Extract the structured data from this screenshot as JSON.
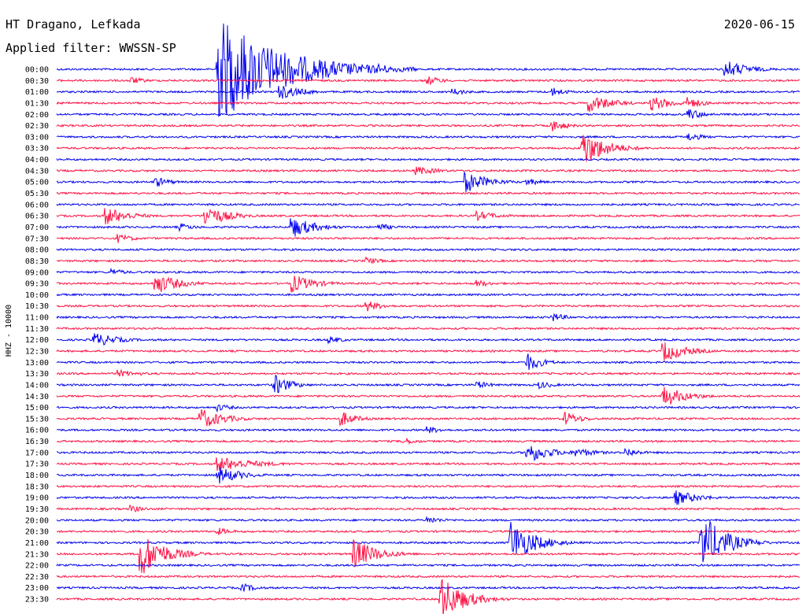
{
  "header": {
    "station": "HT Dragano, Lefkada",
    "filter": "Applied filter: WWSSN-SP",
    "date": "2020-06-15"
  },
  "chart_data": {
    "type": "helicorder",
    "title": "HT Dragano, Lefkada",
    "subtitle": "Applied filter: WWSSN-SP",
    "date": "2020-06-15",
    "ylabel": "HHZ - 10000",
    "colors": {
      "even_rows": "#0000ee",
      "odd_rows": "#ff1144"
    },
    "rows": [
      "00:00",
      "00:30",
      "01:00",
      "01:30",
      "02:00",
      "02:30",
      "03:00",
      "03:30",
      "04:00",
      "04:30",
      "05:00",
      "05:30",
      "06:00",
      "06:30",
      "07:00",
      "07:30",
      "08:00",
      "08:30",
      "09:00",
      "09:30",
      "10:00",
      "10:30",
      "11:00",
      "11:30",
      "12:00",
      "12:30",
      "13:00",
      "13:30",
      "14:00",
      "14:30",
      "15:00",
      "15:30",
      "16:00",
      "16:30",
      "17:00",
      "17:30",
      "18:00",
      "18:30",
      "19:00",
      "19:30",
      "20:00",
      "20:30",
      "21:00",
      "21:30",
      "22:00",
      "22:30",
      "23:00",
      "23:30"
    ],
    "events": [
      {
        "row": 0,
        "minute": 6.5,
        "amp": 70,
        "dur": 8,
        "dir": "down"
      },
      {
        "row": 0,
        "minute": 13,
        "amp": 8,
        "dur": 2
      },
      {
        "row": 0,
        "minute": 27,
        "amp": 12,
        "dur": 3
      },
      {
        "row": 1,
        "minute": 3,
        "amp": 5,
        "dur": 2
      },
      {
        "row": 1,
        "minute": 15,
        "amp": 6,
        "dur": 2
      },
      {
        "row": 2,
        "minute": 9,
        "amp": 10,
        "dur": 3
      },
      {
        "row": 2,
        "minute": 20,
        "amp": 6,
        "dur": 2
      },
      {
        "row": 2,
        "minute": 16,
        "amp": 5,
        "dur": 2
      },
      {
        "row": 3,
        "minute": 21.5,
        "amp": 12,
        "dur": 3
      },
      {
        "row": 3,
        "minute": 24,
        "amp": 10,
        "dur": 3
      },
      {
        "row": 3,
        "minute": 25.5,
        "amp": 8,
        "dur": 2
      },
      {
        "row": 4,
        "minute": 25.5,
        "amp": 8,
        "dur": 2
      },
      {
        "row": 5,
        "minute": 20,
        "amp": 8,
        "dur": 2
      },
      {
        "row": 6,
        "minute": 25.5,
        "amp": 6,
        "dur": 2
      },
      {
        "row": 7,
        "minute": 21.2,
        "amp": 25,
        "dur": 3
      },
      {
        "row": 9,
        "minute": 14.5,
        "amp": 6,
        "dur": 3
      },
      {
        "row": 10,
        "minute": 16.5,
        "amp": 14,
        "dur": 3
      },
      {
        "row": 10,
        "minute": 4,
        "amp": 7,
        "dur": 2
      },
      {
        "row": 10,
        "minute": 19,
        "amp": 5,
        "dur": 2
      },
      {
        "row": 13,
        "minute": 2,
        "amp": 12,
        "dur": 3
      },
      {
        "row": 13,
        "minute": 6,
        "amp": 14,
        "dur": 3
      },
      {
        "row": 13,
        "minute": 17,
        "amp": 6,
        "dur": 3
      },
      {
        "row": 14,
        "minute": 5,
        "amp": 5,
        "dur": 2
      },
      {
        "row": 14,
        "minute": 9.5,
        "amp": 14,
        "dur": 3
      },
      {
        "row": 14,
        "minute": 13,
        "amp": 5,
        "dur": 2
      },
      {
        "row": 15,
        "minute": 2.5,
        "amp": 6,
        "dur": 2
      },
      {
        "row": 17,
        "minute": 12.5,
        "amp": 5,
        "dur": 2
      },
      {
        "row": 18,
        "minute": 2.2,
        "amp": 5,
        "dur": 2
      },
      {
        "row": 19,
        "minute": 4.0,
        "amp": 14,
        "dur": 3
      },
      {
        "row": 19,
        "minute": 9.5,
        "amp": 12,
        "dur": 3
      },
      {
        "row": 19,
        "minute": 17,
        "amp": 5,
        "dur": 2
      },
      {
        "row": 21,
        "minute": 12.5,
        "amp": 8,
        "dur": 2
      },
      {
        "row": 22,
        "minute": 20,
        "amp": 6,
        "dur": 2
      },
      {
        "row": 24,
        "minute": 1.5,
        "amp": 10,
        "dur": 3
      },
      {
        "row": 24,
        "minute": 11,
        "amp": 5,
        "dur": 2
      },
      {
        "row": 25,
        "minute": 24.5,
        "amp": 14,
        "dur": 3
      },
      {
        "row": 26,
        "minute": 19,
        "amp": 12,
        "dur": 2
      },
      {
        "row": 27,
        "minute": 2.5,
        "amp": 5,
        "dur": 3
      },
      {
        "row": 28,
        "minute": 8.8,
        "amp": 14,
        "dur": 2
      },
      {
        "row": 28,
        "minute": 17,
        "amp": 5,
        "dur": 2
      },
      {
        "row": 28,
        "minute": 19.5,
        "amp": 5,
        "dur": 2
      },
      {
        "row": 29,
        "minute": 24.5,
        "amp": 14,
        "dur": 3
      },
      {
        "row": 30,
        "minute": 6.5,
        "amp": 5,
        "dur": 2
      },
      {
        "row": 31,
        "minute": 5.8,
        "amp": 14,
        "dur": 3
      },
      {
        "row": 31,
        "minute": 11.5,
        "amp": 10,
        "dur": 2
      },
      {
        "row": 31,
        "minute": 20.5,
        "amp": 10,
        "dur": 2
      },
      {
        "row": 32,
        "minute": 15,
        "amp": 5,
        "dur": 2
      },
      {
        "row": 33,
        "minute": 14,
        "amp": 5,
        "dur": 2
      },
      {
        "row": 34,
        "minute": 19,
        "amp": 14,
        "dur": 3
      },
      {
        "row": 34,
        "minute": 21,
        "amp": 6,
        "dur": 3
      },
      {
        "row": 34,
        "minute": 23,
        "amp": 6,
        "dur": 2
      },
      {
        "row": 35,
        "minute": 6.5,
        "amp": 10,
        "dur": 5
      },
      {
        "row": 36,
        "minute": 6.5,
        "amp": 12,
        "dur": 3
      },
      {
        "row": 38,
        "minute": 25,
        "amp": 10,
        "dur": 3
      },
      {
        "row": 39,
        "minute": 3,
        "amp": 5,
        "dur": 2
      },
      {
        "row": 40,
        "minute": 15,
        "amp": 5,
        "dur": 2
      },
      {
        "row": 41,
        "minute": 6.5,
        "amp": 5,
        "dur": 2
      },
      {
        "row": 42,
        "minute": 18.3,
        "amp": 30,
        "dur": 3
      },
      {
        "row": 42,
        "minute": 26,
        "amp": 40,
        "dur": 3
      },
      {
        "row": 43,
        "minute": 3.4,
        "amp": 30,
        "dur": 3
      },
      {
        "row": 43,
        "minute": 12,
        "amp": 20,
        "dur": 3
      },
      {
        "row": 46,
        "minute": 7.5,
        "amp": 6,
        "dur": 2
      },
      {
        "row": 47,
        "minute": 15.5,
        "amp": 30,
        "dur": 3
      }
    ]
  }
}
